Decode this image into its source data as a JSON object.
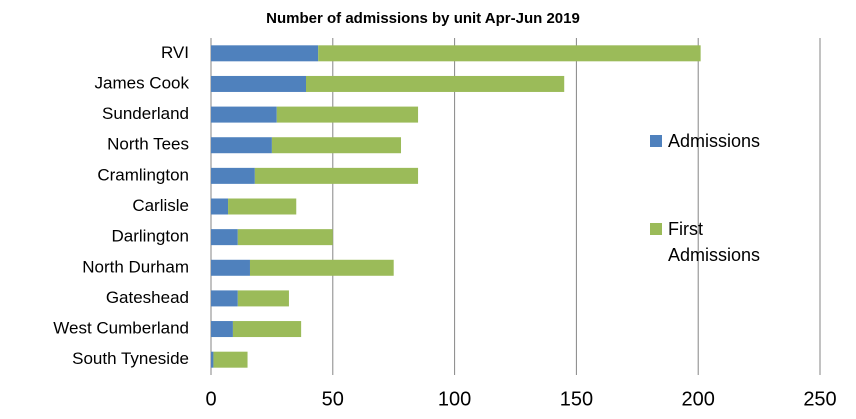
{
  "chart_data": {
    "type": "stacked-barh",
    "title": "Number of admissions by unit Apr-Jun 2019",
    "categories": [
      "RVI",
      "James Cook",
      "Sunderland",
      "North Tees",
      "Cramlington",
      "Carlisle",
      "Darlington",
      "North Durham",
      "Gateshead",
      "West Cumberland",
      "South Tyneside"
    ],
    "series": [
      {
        "name": "Admissions",
        "color": "#4f81bd",
        "values": [
          44,
          39,
          27,
          25,
          18,
          7,
          11,
          16,
          11,
          9,
          1
        ]
      },
      {
        "name": "First Admissions",
        "color": "#9bbb59",
        "values": [
          157,
          106,
          58,
          53,
          67,
          28,
          39,
          59,
          21,
          28,
          14
        ]
      }
    ],
    "xlim": [
      0,
      250
    ],
    "xticks": [
      0,
      50,
      100,
      150,
      200,
      250
    ],
    "grid": true,
    "legend": "right"
  }
}
